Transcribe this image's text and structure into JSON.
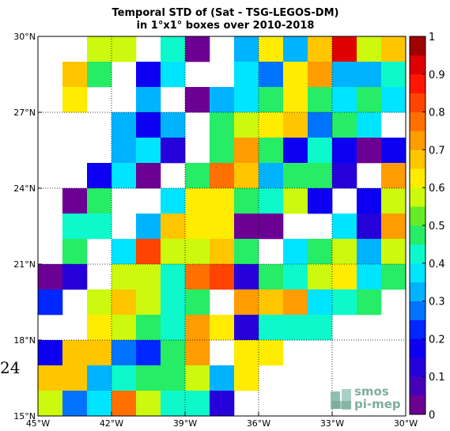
{
  "chart_data": {
    "type": "heatmap",
    "title_lines": [
      "Temporal STD of (Sat - TSG-LEGOS-DM)",
      "in 1°x1° boxes over 2010-2018"
    ],
    "x_ticks": [
      "45°W",
      "42°W",
      "39°W",
      "36°W",
      "33°W",
      "30°W"
    ],
    "y_ticks": [
      "30°N",
      "27°N",
      "24°N",
      "21°N",
      "18°N",
      "15°N"
    ],
    "x_range": [
      -45,
      -30
    ],
    "y_range": [
      15,
      30
    ],
    "cell_size_deg": 1,
    "colorbar": {
      "min": 0,
      "max": 1,
      "ticks": [
        "0",
        "0.1",
        "0.2",
        "0.3",
        "0.4",
        "0.5",
        "0.6",
        "0.7",
        "0.8",
        "0.9",
        "1"
      ],
      "levels": 20
    },
    "grid": "dotted",
    "grid_rows_note": "rows listed from north (29-30°N) to south (15-16°N); columns from 45°W to 30°W; null = no data",
    "grid_values": [
      [
        null,
        null,
        0.55,
        0.55,
        null,
        0.42,
        0.03,
        null,
        0.33,
        0.62,
        0.33,
        0.65,
        0.93,
        0.57,
        0.67
      ],
      [
        null,
        0.67,
        0.48,
        null,
        0.17,
        0.38,
        null,
        null,
        0.38,
        0.27,
        0.62,
        0.73,
        0.33,
        0.33,
        0.42
      ],
      [
        null,
        0.62,
        null,
        null,
        0.33,
        null,
        0.03,
        0.33,
        0.38,
        0.48,
        0.62,
        0.48,
        0.38,
        0.48,
        0.38
      ],
      [
        null,
        null,
        null,
        0.33,
        0.17,
        0.33,
        null,
        0.48,
        0.57,
        0.62,
        0.67,
        0.27,
        0.48,
        0.38,
        null
      ],
      [
        null,
        null,
        null,
        0.33,
        0.38,
        0.12,
        null,
        0.48,
        0.73,
        0.48,
        0.17,
        0.42,
        0.17,
        0.03,
        0.17
      ],
      [
        null,
        null,
        0.17,
        0.38,
        0.03,
        null,
        0.48,
        0.78,
        0.67,
        0.33,
        0.48,
        0.48,
        0.12,
        null,
        0.73
      ],
      [
        null,
        0.03,
        0.48,
        null,
        null,
        0.38,
        0.62,
        0.62,
        0.48,
        0.42,
        0.57,
        0.17,
        null,
        0.17,
        0.57
      ],
      [
        null,
        0.42,
        0.42,
        null,
        0.33,
        0.67,
        0.62,
        0.62,
        0.03,
        0.03,
        null,
        null,
        0.38,
        0.12,
        0.73
      ],
      [
        null,
        0.48,
        null,
        0.38,
        0.82,
        0.57,
        0.57,
        0.67,
        0.48,
        null,
        0.38,
        0.48,
        0.57,
        0.33,
        0.57
      ],
      [
        0.03,
        0.12,
        null,
        0.57,
        0.57,
        0.42,
        0.78,
        0.83,
        0.12,
        0.48,
        0.42,
        0.57,
        0.62,
        0.38,
        0.48
      ],
      [
        0.22,
        null,
        0.57,
        0.67,
        0.57,
        0.42,
        0.48,
        null,
        0.73,
        0.67,
        0.73,
        0.38,
        0.42,
        0.48,
        null
      ],
      [
        null,
        null,
        0.62,
        0.57,
        0.48,
        0.42,
        0.73,
        0.62,
        0.12,
        0.42,
        0.42,
        0.42,
        null,
        null,
        null
      ],
      [
        0.17,
        0.67,
        0.67,
        0.27,
        0.22,
        0.48,
        0.73,
        null,
        0.62,
        0.62,
        null,
        null,
        null,
        null,
        null
      ],
      [
        0.67,
        0.67,
        0.33,
        0.42,
        0.48,
        0.48,
        0.57,
        0.33,
        0.62,
        null,
        null,
        null,
        null,
        null,
        null
      ],
      [
        0.57,
        0.27,
        0.38,
        0.78,
        0.57,
        0.42,
        0.42,
        0.12,
        null,
        null,
        null,
        null,
        null,
        null,
        null
      ]
    ]
  },
  "overlay": {
    "stray_label": "24",
    "logo_line1": "smos",
    "logo_line2": "pi-mep"
  }
}
